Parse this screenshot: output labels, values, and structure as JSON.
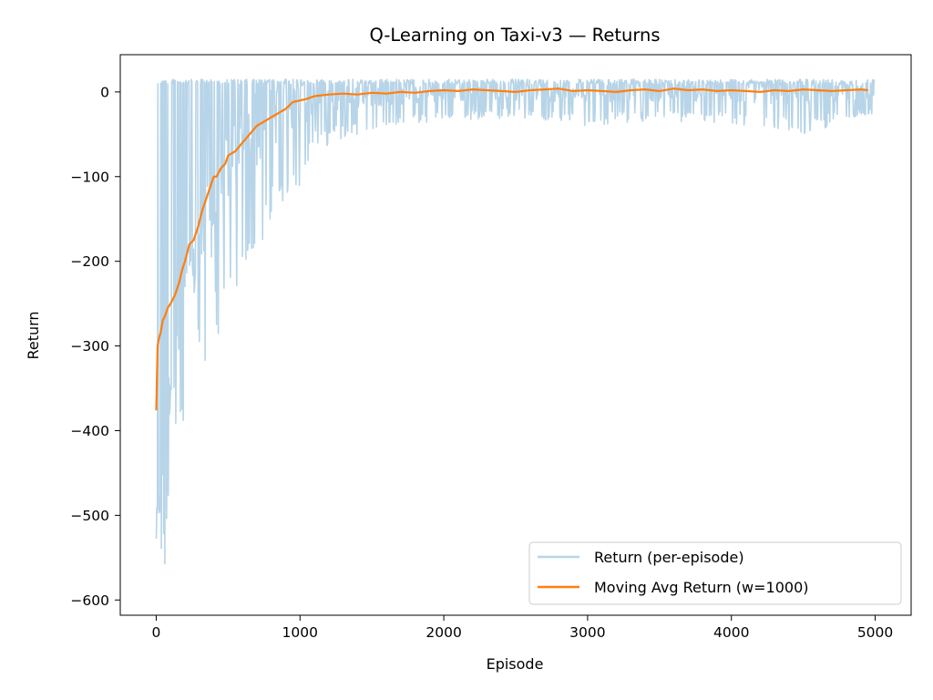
{
  "chart_data": {
    "type": "line",
    "title": "Q-Learning on Taxi-v3 — Returns",
    "xlabel": "Episode",
    "ylabel": "Return",
    "xlim": [
      -250,
      5250
    ],
    "ylim": [
      -618,
      44
    ],
    "xticks": [
      0,
      1000,
      2000,
      3000,
      4000,
      5000
    ],
    "yticks": [
      0,
      -100,
      -200,
      -300,
      -400,
      -500,
      -600
    ],
    "xtick_labels": [
      "0",
      "1000",
      "2000",
      "3000",
      "4000",
      "5000"
    ],
    "ytick_labels": [
      "0",
      "−100",
      "−200",
      "−300",
      "−400",
      "−500",
      "−600"
    ],
    "grid": false,
    "legend_position": "lower-right",
    "series": [
      {
        "name": "Return (per-episode)",
        "color": "#b7d4e8",
        "kind": "raw_returns",
        "episodes": 5000,
        "trend": [
          [
            0,
            -520
          ],
          [
            50,
            -430
          ],
          [
            100,
            -340
          ],
          [
            200,
            -250
          ],
          [
            300,
            -190
          ],
          [
            400,
            -140
          ],
          [
            500,
            -95
          ],
          [
            600,
            -70
          ],
          [
            700,
            -45
          ],
          [
            800,
            -30
          ],
          [
            900,
            -20
          ],
          [
            1000,
            -14
          ],
          [
            1200,
            -8
          ],
          [
            1500,
            -5
          ],
          [
            2000,
            -2
          ],
          [
            3000,
            -1
          ],
          [
            5000,
            0
          ]
        ],
        "low_envelope": [
          [
            0,
            -586
          ],
          [
            30,
            -585
          ],
          [
            60,
            -568
          ],
          [
            100,
            -440
          ],
          [
            150,
            -400
          ],
          [
            200,
            -425
          ],
          [
            250,
            -330
          ],
          [
            300,
            -310
          ],
          [
            350,
            -345
          ],
          [
            400,
            -300
          ],
          [
            450,
            -280
          ],
          [
            500,
            -290
          ],
          [
            600,
            -240
          ],
          [
            700,
            -200
          ],
          [
            800,
            -150
          ],
          [
            900,
            -130
          ],
          [
            1000,
            -110
          ],
          [
            1100,
            -70
          ],
          [
            1300,
            -55
          ],
          [
            1500,
            -45
          ],
          [
            1700,
            -40
          ],
          [
            2000,
            -35
          ],
          [
            2500,
            -30
          ],
          [
            3000,
            -40
          ],
          [
            3500,
            -35
          ],
          [
            4000,
            -38
          ],
          [
            4500,
            -50
          ],
          [
            5000,
            -25
          ]
        ],
        "high_value": 15
      },
      {
        "name": "Moving Avg Return (w=1000)",
        "color": "#ff7f0e",
        "kind": "moving_average",
        "x": [
          0,
          10,
          20,
          30,
          45,
          60,
          80,
          100,
          130,
          160,
          180,
          200,
          230,
          260,
          290,
          320,
          350,
          380,
          400,
          420,
          450,
          480,
          500,
          550,
          600,
          650,
          700,
          750,
          800,
          850,
          900,
          950,
          1000,
          1050,
          1100,
          1150,
          1200,
          1300,
          1400,
          1500,
          1600,
          1700,
          1800,
          1900,
          2000,
          2100,
          2200,
          2300,
          2400,
          2500,
          2600,
          2700,
          2800,
          2900,
          3000,
          3100,
          3200,
          3300,
          3400,
          3500,
          3600,
          3700,
          3800,
          3900,
          4000,
          4100,
          4200,
          4300,
          4400,
          4500,
          4600,
          4700,
          4800,
          4900,
          4950
        ],
        "y": [
          -376,
          -300,
          -290,
          -285,
          -270,
          -265,
          -255,
          -250,
          -240,
          -225,
          -210,
          -200,
          -180,
          -175,
          -160,
          -140,
          -125,
          -110,
          -100,
          -100,
          -90,
          -85,
          -75,
          -70,
          -60,
          -50,
          -40,
          -35,
          -30,
          -25,
          -20,
          -12,
          -10,
          -8,
          -5,
          -4,
          -3,
          -2,
          -3,
          -1,
          -2,
          0,
          -1,
          1,
          2,
          1,
          3,
          2,
          1,
          0,
          2,
          3,
          4,
          1,
          2,
          1,
          0,
          2,
          3,
          1,
          4,
          2,
          3,
          1,
          2,
          1,
          0,
          2,
          1,
          3,
          2,
          1,
          2,
          3,
          2
        ]
      }
    ]
  }
}
